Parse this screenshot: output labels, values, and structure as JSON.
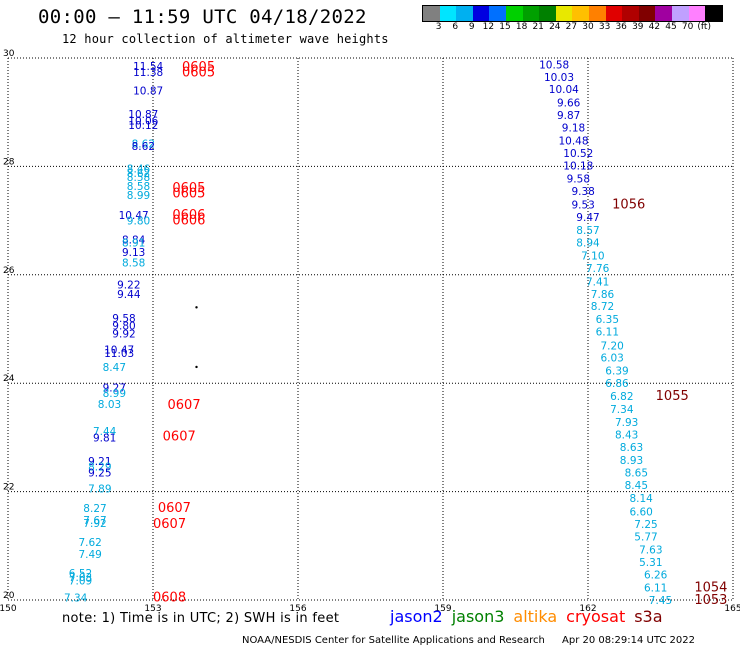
{
  "header": {
    "title": "00:00 – 11:59 UTC 04/18/2022",
    "subtitle": "12 hour collection of altimeter wave heights"
  },
  "color_scale": {
    "colors": [
      "#808080",
      "#00e5ff",
      "#00b0f0",
      "#0000e0",
      "#0070ff",
      "#00d000",
      "#00a000",
      "#008000",
      "#e8e800",
      "#ffc000",
      "#ff8000",
      "#e00000",
      "#b00000",
      "#800000",
      "#a000a0",
      "#c0a0ff",
      "#ff80ff",
      "#000000"
    ],
    "labels": [
      "3",
      "6",
      "9",
      "12",
      "15",
      "18",
      "21",
      "24",
      "27",
      "30",
      "33",
      "36",
      "39",
      "42",
      "45",
      "70",
      "(ft)"
    ]
  },
  "note": "note:  1) Time is in UTC;  2) SWH is in feet",
  "legend": [
    {
      "label": "jason2",
      "color": "#0000ff"
    },
    {
      "label": "jason3",
      "color": "#008000"
    },
    {
      "label": "altika",
      "color": "#ff8c00"
    },
    {
      "label": "cryosat",
      "color": "#ff0000"
    },
    {
      "label": "s3a",
      "color": "#800000"
    }
  ],
  "footer": {
    "credit": "NOAA/NESDIS Center for Satellite Applications and Research",
    "timestamp": "Apr 20 08:29:14 UTC 2022"
  },
  "chart_data": {
    "type": "scatter",
    "xlim": [
      150,
      165
    ],
    "ylim": [
      20,
      30
    ],
    "x_ticks": [
      "150",
      "153",
      "156",
      "159",
      "162",
      "165"
    ],
    "y_ticks": [
      "20",
      "22",
      "24",
      "26",
      "28",
      "30"
    ],
    "grid": true,
    "colors": {
      "dark_blue": "#0000cc",
      "light_blue": "#00aadd",
      "red": "#ff0000",
      "maroon": "#800000"
    },
    "dots": [
      [
        153.9,
        25.4
      ],
      [
        153.9,
        24.3
      ]
    ],
    "labels": [
      {
        "x": 152.9,
        "y": 29.85,
        "t": "11.54",
        "c": "dark_blue"
      },
      {
        "x": 152.9,
        "y": 29.74,
        "t": "11.38",
        "c": "dark_blue"
      },
      {
        "x": 152.9,
        "y": 29.4,
        "t": "10.87",
        "c": "dark_blue"
      },
      {
        "x": 152.8,
        "y": 28.97,
        "t": "10.87",
        "c": "dark_blue"
      },
      {
        "x": 152.8,
        "y": 28.85,
        "t": "10.06",
        "c": "dark_blue"
      },
      {
        "x": 152.8,
        "y": 28.76,
        "t": "10.12",
        "c": "dark_blue"
      },
      {
        "x": 152.8,
        "y": 28.42,
        "t": "8.62",
        "c": "light_blue"
      },
      {
        "x": 152.8,
        "y": 28.38,
        "t": "8.62",
        "c": "dark_blue"
      },
      {
        "x": 152.7,
        "y": 27.96,
        "t": "8.46",
        "c": "light_blue"
      },
      {
        "x": 152.7,
        "y": 27.88,
        "t": "8.62",
        "c": "light_blue"
      },
      {
        "x": 152.7,
        "y": 27.8,
        "t": "8.58",
        "c": "light_blue"
      },
      {
        "x": 152.7,
        "y": 27.64,
        "t": "8.58",
        "c": "light_blue"
      },
      {
        "x": 152.7,
        "y": 27.47,
        "t": "8.99",
        "c": "light_blue"
      },
      {
        "x": 152.6,
        "y": 27.1,
        "t": "10.47",
        "c": "dark_blue"
      },
      {
        "x": 152.7,
        "y": 27.0,
        "t": "9.80",
        "c": "light_blue"
      },
      {
        "x": 152.6,
        "y": 26.65,
        "t": "8.84",
        "c": "dark_blue"
      },
      {
        "x": 152.6,
        "y": 26.6,
        "t": "8.91",
        "c": "light_blue"
      },
      {
        "x": 152.6,
        "y": 26.42,
        "t": "9.13",
        "c": "dark_blue"
      },
      {
        "x": 152.6,
        "y": 26.23,
        "t": "8.58",
        "c": "light_blue"
      },
      {
        "x": 152.5,
        "y": 25.82,
        "t": "9.22",
        "c": "dark_blue"
      },
      {
        "x": 152.5,
        "y": 25.65,
        "t": "9.44",
        "c": "dark_blue"
      },
      {
        "x": 152.4,
        "y": 25.2,
        "t": "9.58",
        "c": "dark_blue"
      },
      {
        "x": 152.4,
        "y": 25.06,
        "t": "9.80",
        "c": "dark_blue"
      },
      {
        "x": 152.4,
        "y": 24.92,
        "t": "9.92",
        "c": "dark_blue"
      },
      {
        "x": 152.3,
        "y": 24.62,
        "t": "10.47",
        "c": "dark_blue"
      },
      {
        "x": 152.3,
        "y": 24.56,
        "t": "11.03",
        "c": "dark_blue"
      },
      {
        "x": 152.2,
        "y": 24.3,
        "t": "8.47",
        "c": "light_blue"
      },
      {
        "x": 152.2,
        "y": 23.92,
        "t": "9.27",
        "c": "dark_blue"
      },
      {
        "x": 152.2,
        "y": 23.82,
        "t": "8.99",
        "c": "light_blue"
      },
      {
        "x": 152.1,
        "y": 23.62,
        "t": "8.03",
        "c": "light_blue"
      },
      {
        "x": 152.0,
        "y": 23.12,
        "t": "7.44",
        "c": "light_blue"
      },
      {
        "x": 152.0,
        "y": 23.0,
        "t": "9.81",
        "c": "dark_blue"
      },
      {
        "x": 151.9,
        "y": 22.56,
        "t": "9.21",
        "c": "dark_blue"
      },
      {
        "x": 151.9,
        "y": 22.46,
        "t": "8.29",
        "c": "light_blue"
      },
      {
        "x": 151.9,
        "y": 22.35,
        "t": "9.25",
        "c": "dark_blue"
      },
      {
        "x": 151.9,
        "y": 22.06,
        "t": "7.89",
        "c": "light_blue"
      },
      {
        "x": 151.8,
        "y": 21.7,
        "t": "8.27",
        "c": "light_blue"
      },
      {
        "x": 151.8,
        "y": 21.48,
        "t": "7.67",
        "c": "light_blue"
      },
      {
        "x": 151.8,
        "y": 21.42,
        "t": "7.92",
        "c": "light_blue"
      },
      {
        "x": 151.7,
        "y": 21.07,
        "t": "7.62",
        "c": "light_blue"
      },
      {
        "x": 151.7,
        "y": 20.85,
        "t": "7.49",
        "c": "light_blue"
      },
      {
        "x": 151.5,
        "y": 20.5,
        "t": "6.52",
        "c": "light_blue"
      },
      {
        "x": 151.5,
        "y": 20.42,
        "t": "7.03",
        "c": "light_blue"
      },
      {
        "x": 151.5,
        "y": 20.36,
        "t": "7.09",
        "c": "light_blue"
      },
      {
        "x": 151.4,
        "y": 20.05,
        "t": "7.34",
        "c": "light_blue"
      },
      {
        "x": 153.6,
        "y": 29.83,
        "t": "0605",
        "c": "red"
      },
      {
        "x": 153.6,
        "y": 29.73,
        "t": "0605",
        "c": "red"
      },
      {
        "x": 153.4,
        "y": 27.6,
        "t": "0605",
        "c": "red"
      },
      {
        "x": 153.4,
        "y": 27.5,
        "t": "0605",
        "c": "red"
      },
      {
        "x": 153.4,
        "y": 27.1,
        "t": "0606",
        "c": "red"
      },
      {
        "x": 153.4,
        "y": 27.0,
        "t": "0606",
        "c": "red"
      },
      {
        "x": 153.3,
        "y": 23.6,
        "t": "0607",
        "c": "red"
      },
      {
        "x": 153.2,
        "y": 23.02,
        "t": "0607",
        "c": "red"
      },
      {
        "x": 153.1,
        "y": 21.7,
        "t": "0607",
        "c": "red"
      },
      {
        "x": 153.0,
        "y": 21.4,
        "t": "0607",
        "c": "red"
      },
      {
        "x": 153.0,
        "y": 20.05,
        "t": "0608",
        "c": "red"
      },
      {
        "x": 161.3,
        "y": 29.88,
        "t": "10.58",
        "c": "dark_blue"
      },
      {
        "x": 161.4,
        "y": 29.65,
        "t": "10.03",
        "c": "dark_blue"
      },
      {
        "x": 161.5,
        "y": 29.43,
        "t": "10.04",
        "c": "dark_blue"
      },
      {
        "x": 161.6,
        "y": 29.18,
        "t": "9.66",
        "c": "dark_blue"
      },
      {
        "x": 161.6,
        "y": 28.95,
        "t": "9.87",
        "c": "dark_blue"
      },
      {
        "x": 161.7,
        "y": 28.72,
        "t": "9.18",
        "c": "dark_blue"
      },
      {
        "x": 161.7,
        "y": 28.48,
        "t": "10.48",
        "c": "dark_blue"
      },
      {
        "x": 161.8,
        "y": 28.25,
        "t": "10.52",
        "c": "dark_blue"
      },
      {
        "x": 161.8,
        "y": 28.02,
        "t": "10.18",
        "c": "dark_blue"
      },
      {
        "x": 161.8,
        "y": 27.78,
        "t": "9.58",
        "c": "dark_blue"
      },
      {
        "x": 161.9,
        "y": 27.55,
        "t": "9.38",
        "c": "dark_blue"
      },
      {
        "x": 161.9,
        "y": 27.3,
        "t": "9.53",
        "c": "dark_blue"
      },
      {
        "x": 162.0,
        "y": 27.07,
        "t": "9.47",
        "c": "dark_blue"
      },
      {
        "x": 162.0,
        "y": 26.83,
        "t": "8.57",
        "c": "light_blue"
      },
      {
        "x": 162.0,
        "y": 26.6,
        "t": "8.94",
        "c": "light_blue"
      },
      {
        "x": 162.1,
        "y": 26.36,
        "t": "7.10",
        "c": "light_blue"
      },
      {
        "x": 162.2,
        "y": 26.13,
        "t": "7.76",
        "c": "light_blue"
      },
      {
        "x": 162.2,
        "y": 25.88,
        "t": "7.41",
        "c": "light_blue"
      },
      {
        "x": 162.3,
        "y": 25.65,
        "t": "7.86",
        "c": "light_blue"
      },
      {
        "x": 162.3,
        "y": 25.42,
        "t": "8.72",
        "c": "light_blue"
      },
      {
        "x": 162.4,
        "y": 25.18,
        "t": "6.35",
        "c": "light_blue"
      },
      {
        "x": 162.4,
        "y": 24.95,
        "t": "6.11",
        "c": "light_blue"
      },
      {
        "x": 162.5,
        "y": 24.7,
        "t": "7.20",
        "c": "light_blue"
      },
      {
        "x": 162.5,
        "y": 24.47,
        "t": "6.03",
        "c": "light_blue"
      },
      {
        "x": 162.6,
        "y": 24.23,
        "t": "6.39",
        "c": "light_blue"
      },
      {
        "x": 162.6,
        "y": 24.0,
        "t": "6.86",
        "c": "light_blue"
      },
      {
        "x": 162.7,
        "y": 23.76,
        "t": "6.82",
        "c": "light_blue"
      },
      {
        "x": 162.7,
        "y": 23.52,
        "t": "7.34",
        "c": "light_blue"
      },
      {
        "x": 162.8,
        "y": 23.28,
        "t": "7.93",
        "c": "light_blue"
      },
      {
        "x": 162.8,
        "y": 23.05,
        "t": "8.43",
        "c": "light_blue"
      },
      {
        "x": 162.9,
        "y": 22.82,
        "t": "8.63",
        "c": "light_blue"
      },
      {
        "x": 162.9,
        "y": 22.58,
        "t": "8.93",
        "c": "light_blue"
      },
      {
        "x": 163.0,
        "y": 22.35,
        "t": "8.65",
        "c": "light_blue"
      },
      {
        "x": 163.0,
        "y": 22.12,
        "t": "8.45",
        "c": "light_blue"
      },
      {
        "x": 163.1,
        "y": 21.88,
        "t": "8.14",
        "c": "light_blue"
      },
      {
        "x": 163.1,
        "y": 21.63,
        "t": "6.60",
        "c": "light_blue"
      },
      {
        "x": 163.2,
        "y": 21.4,
        "t": "7.25",
        "c": "light_blue"
      },
      {
        "x": 163.2,
        "y": 21.17,
        "t": "5.77",
        "c": "light_blue"
      },
      {
        "x": 163.3,
        "y": 20.93,
        "t": "7.63",
        "c": "light_blue"
      },
      {
        "x": 163.3,
        "y": 20.7,
        "t": "5.31",
        "c": "light_blue"
      },
      {
        "x": 163.4,
        "y": 20.47,
        "t": "6.26",
        "c": "light_blue"
      },
      {
        "x": 163.4,
        "y": 20.23,
        "t": "6.11",
        "c": "light_blue"
      },
      {
        "x": 163.5,
        "y": 20.0,
        "t": "7.45",
        "c": "light_blue"
      },
      {
        "x": 162.5,
        "y": 27.3,
        "t": "1056",
        "c": "maroon"
      },
      {
        "x": 163.4,
        "y": 23.76,
        "t": "1055",
        "c": "maroon"
      },
      {
        "x": 164.2,
        "y": 20.23,
        "t": "1054",
        "c": "maroon"
      },
      {
        "x": 164.2,
        "y": 20.0,
        "t": "1053",
        "c": "maroon"
      }
    ]
  }
}
